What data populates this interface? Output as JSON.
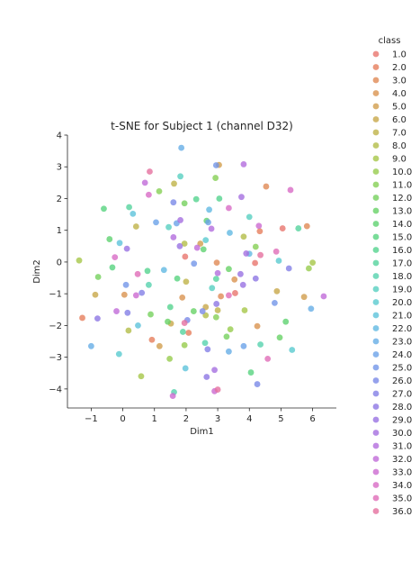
{
  "chart_data": {
    "type": "scatter",
    "title": "t-SNE for Subject 1 (channel D32)",
    "xlabel": "Dim1",
    "ylabel": "Dim2",
    "xlim": [
      -1.75,
      6.75
    ],
    "ylim": [
      -4.6,
      4.0
    ],
    "xticks": [
      -1,
      0,
      1,
      2,
      3,
      4,
      5,
      6
    ],
    "yticks": [
      -4,
      -3,
      -2,
      -1,
      0,
      1,
      2,
      3,
      4
    ],
    "grid": false,
    "legend_placement": "right",
    "legend_title": "class",
    "point_size": 6,
    "point_opacity": 0.8,
    "series": [
      {
        "name": "1.0",
        "color": "#e8756e",
        "points": [
          [
            1.97,
            0.17
          ],
          [
            3.55,
            -0.98
          ],
          [
            4.18,
            -0.03
          ],
          [
            5.05,
            1.06
          ]
        ]
      },
      {
        "name": "2.0",
        "color": "#e67e5d",
        "points": [
          [
            -1.28,
            -1.76
          ],
          [
            0.92,
            -2.45
          ],
          [
            4.33,
            0.97
          ],
          [
            2.08,
            -2.23
          ]
        ]
      },
      {
        "name": "3.0",
        "color": "#e08a55",
        "points": [
          [
            4.53,
            2.38
          ],
          [
            3.1,
            -1.08
          ],
          [
            2.97,
            -0.02
          ],
          [
            5.82,
            1.13
          ]
        ]
      },
      {
        "name": "4.0",
        "color": "#d99450",
        "points": [
          [
            0.05,
            -1.03
          ],
          [
            1.88,
            -1.12
          ],
          [
            3.53,
            -0.55
          ],
          [
            4.25,
            -2.02
          ]
        ]
      },
      {
        "name": "5.0",
        "color": "#d19d4d",
        "points": [
          [
            3.04,
            3.06
          ],
          [
            1.16,
            -2.65
          ],
          [
            5.73,
            -1.1
          ],
          [
            2.45,
            0.58
          ]
        ]
      },
      {
        "name": "6.0",
        "color": "#c8a84a",
        "points": [
          [
            -0.87,
            -1.03
          ],
          [
            4.87,
            -0.92
          ],
          [
            1.52,
            -1.94
          ],
          [
            2.62,
            -1.42
          ]
        ]
      },
      {
        "name": "7.0",
        "color": "#bfb349",
        "points": [
          [
            1.62,
            2.47
          ],
          [
            0.42,
            1.12
          ],
          [
            2.0,
            -0.62
          ],
          [
            3.0,
            -1.52
          ]
        ]
      },
      {
        "name": "8.0",
        "color": "#b3bd48",
        "points": [
          [
            2.62,
            -1.68
          ],
          [
            0.18,
            -2.16
          ],
          [
            3.82,
            0.8
          ],
          [
            1.95,
            0.58
          ]
        ]
      },
      {
        "name": "9.0",
        "color": "#a6c748",
        "points": [
          [
            -1.38,
            0.05
          ],
          [
            0.58,
            -3.6
          ],
          [
            3.85,
            -1.52
          ],
          [
            6.0,
            -0.02
          ]
        ]
      },
      {
        "name": "10.0",
        "color": "#97cc4d",
        "points": [
          [
            1.95,
            -2.62
          ],
          [
            3.4,
            -2.12
          ],
          [
            1.48,
            -3.05
          ],
          [
            5.88,
            -0.2
          ]
        ]
      },
      {
        "name": "11.0",
        "color": "#86cf55",
        "points": [
          [
            1.15,
            2.23
          ],
          [
            2.93,
            2.65
          ],
          [
            4.2,
            0.48
          ],
          [
            2.95,
            -1.74
          ]
        ]
      },
      {
        "name": "12.0",
        "color": "#76d15e",
        "points": [
          [
            -0.78,
            -0.47
          ],
          [
            3.28,
            -2.35
          ],
          [
            1.95,
            1.85
          ],
          [
            0.88,
            -1.65
          ]
        ]
      },
      {
        "name": "13.0",
        "color": "#68d267",
        "points": [
          [
            3.35,
            -0.22
          ],
          [
            1.42,
            -1.88
          ],
          [
            2.24,
            -1.55
          ],
          [
            4.96,
            -2.38
          ]
        ]
      },
      {
        "name": "14.0",
        "color": "#5fd271",
        "points": [
          [
            -0.42,
            0.72
          ],
          [
            2.55,
            0.4
          ],
          [
            5.15,
            -1.88
          ],
          [
            2.65,
            1.3
          ]
        ]
      },
      {
        "name": "15.0",
        "color": "#58d380",
        "points": [
          [
            -0.33,
            -0.17
          ],
          [
            -0.6,
            1.68
          ],
          [
            4.05,
            -3.48
          ],
          [
            1.72,
            -0.52
          ]
        ]
      },
      {
        "name": "16.0",
        "color": "#55d38f",
        "points": [
          [
            3.05,
            2.0
          ],
          [
            0.78,
            -0.28
          ],
          [
            1.5,
            -1.42
          ],
          [
            2.32,
            1.98
          ]
        ]
      },
      {
        "name": "17.0",
        "color": "#55d39e",
        "points": [
          [
            5.55,
            1.06
          ],
          [
            0.2,
            1.73
          ],
          [
            1.9,
            -2.2
          ],
          [
            2.95,
            -0.53
          ]
        ]
      },
      {
        "name": "18.0",
        "color": "#56d2ae",
        "points": [
          [
            2.6,
            -2.55
          ],
          [
            1.62,
            -4.1
          ],
          [
            0.82,
            -0.72
          ],
          [
            4.35,
            -2.6
          ]
        ]
      },
      {
        "name": "19.0",
        "color": "#58d0c0",
        "points": [
          [
            1.82,
            2.7
          ],
          [
            4.0,
            1.42
          ],
          [
            1.45,
            1.1
          ],
          [
            2.82,
            -0.82
          ]
        ]
      },
      {
        "name": "20.0",
        "color": "#5acbd0",
        "points": [
          [
            -0.12,
            -2.9
          ],
          [
            2.62,
            0.69
          ],
          [
            4.93,
            0.04
          ],
          [
            5.35,
            -2.77
          ]
        ]
      },
      {
        "name": "21.0",
        "color": "#5ec3db",
        "points": [
          [
            0.48,
            -2.0
          ],
          [
            -0.1,
            0.6
          ],
          [
            0.32,
            1.52
          ],
          [
            1.98,
            -3.35
          ]
        ]
      },
      {
        "name": "22.0",
        "color": "#62b9e2",
        "points": [
          [
            2.73,
            1.65
          ],
          [
            1.3,
            -0.25
          ],
          [
            3.38,
            0.92
          ],
          [
            4.0,
            0.26
          ]
        ]
      },
      {
        "name": "23.0",
        "color": "#67aee6",
        "points": [
          [
            -1.0,
            -2.65
          ],
          [
            3.35,
            -2.82
          ],
          [
            5.95,
            -1.47
          ],
          [
            1.85,
            3.6
          ]
        ]
      },
      {
        "name": "24.0",
        "color": "#6ca2e8",
        "points": [
          [
            1.05,
            1.25
          ],
          [
            1.7,
            1.22
          ],
          [
            2.7,
            1.25
          ],
          [
            3.82,
            -2.65
          ]
        ]
      },
      {
        "name": "25.0",
        "color": "#7396e8",
        "points": [
          [
            2.95,
            3.05
          ],
          [
            2.25,
            -0.05
          ],
          [
            4.8,
            -1.29
          ],
          [
            0.1,
            -0.72
          ]
        ]
      },
      {
        "name": "26.0",
        "color": "#7b8ae7",
        "points": [
          [
            2.04,
            -1.83
          ],
          [
            2.52,
            -1.55
          ],
          [
            4.25,
            -3.85
          ],
          [
            1.6,
            1.88
          ]
        ]
      },
      {
        "name": "27.0",
        "color": "#837fe6",
        "points": [
          [
            0.15,
            -1.6
          ],
          [
            2.68,
            -2.75
          ],
          [
            5.25,
            -0.2
          ],
          [
            0.6,
            -0.97
          ]
        ]
      },
      {
        "name": "28.0",
        "color": "#8d77e4",
        "points": [
          [
            -0.8,
            -1.78
          ],
          [
            2.96,
            -1.32
          ],
          [
            4.2,
            -0.52
          ],
          [
            2.65,
            -3.62
          ]
        ]
      },
      {
        "name": "29.0",
        "color": "#9972e2",
        "points": [
          [
            3.8,
            -0.72
          ],
          [
            0.13,
            0.42
          ],
          [
            1.8,
            0.5
          ],
          [
            3.72,
            -0.38
          ]
        ]
      },
      {
        "name": "30.0",
        "color": "#a56fe0",
        "points": [
          [
            2.9,
            -3.4
          ],
          [
            3.75,
            2.05
          ],
          [
            3.9,
            0.27
          ],
          [
            1.82,
            1.32
          ]
        ]
      },
      {
        "name": "31.0",
        "color": "#b36ddd",
        "points": [
          [
            3.0,
            -0.35
          ],
          [
            3.82,
            3.08
          ],
          [
            1.6,
            0.78
          ],
          [
            2.8,
            1.05
          ]
        ]
      },
      {
        "name": "32.0",
        "color": "#c06bd8",
        "points": [
          [
            -0.2,
            -1.55
          ],
          [
            0.7,
            2.5
          ],
          [
            2.35,
            0.45
          ],
          [
            6.35,
            -1.08
          ]
        ]
      },
      {
        "name": "33.0",
        "color": "#cc6ad1",
        "points": [
          [
            0.42,
            -1.05
          ],
          [
            1.58,
            -4.22
          ],
          [
            4.3,
            1.14
          ],
          [
            2.9,
            -4.07
          ]
        ]
      },
      {
        "name": "34.0",
        "color": "#d86bc6",
        "points": [
          [
            0.82,
            2.12
          ],
          [
            -0.25,
            0.15
          ],
          [
            3.35,
            1.7
          ],
          [
            5.3,
            2.27
          ]
        ]
      },
      {
        "name": "35.0",
        "color": "#e06db8",
        "points": [
          [
            3.35,
            -1.05
          ],
          [
            0.47,
            -0.38
          ],
          [
            4.58,
            -3.05
          ],
          [
            4.85,
            0.33
          ]
        ]
      },
      {
        "name": "36.0",
        "color": "#e5709f",
        "points": [
          [
            1.95,
            -1.92
          ],
          [
            4.35,
            0.22
          ],
          [
            3.0,
            -4.02
          ],
          [
            0.85,
            2.85
          ]
        ]
      }
    ]
  }
}
